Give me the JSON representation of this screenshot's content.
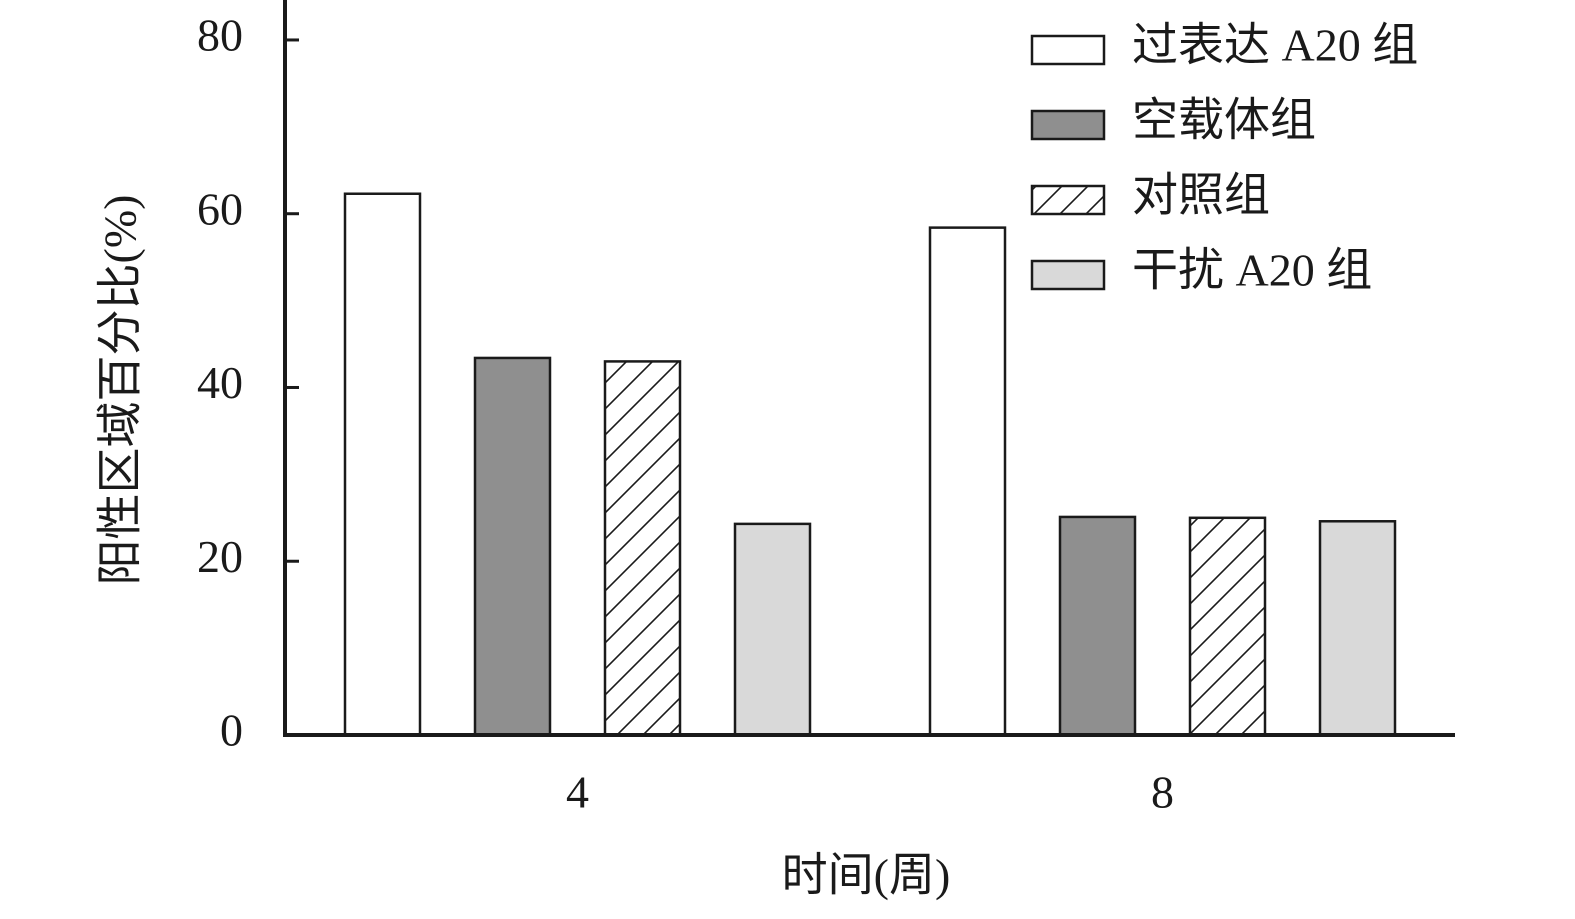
{
  "chart_data": {
    "type": "bar",
    "x_label": "时间(周)",
    "y_label": "阳性区域百分比(%)",
    "categories": [
      "4",
      "8"
    ],
    "series": [
      {
        "name": "过表达 A20 组",
        "color": "#ffffff",
        "values": [
          62.3,
          58.4
        ]
      },
      {
        "name": "空载体组",
        "color": "#8f8f8f",
        "values": [
          43.4,
          25.1
        ]
      },
      {
        "name": "对照组",
        "color": "#ffffff",
        "pattern": "hatch",
        "values": [
          43.0,
          25.0
        ]
      },
      {
        "name": "干扰 A20 组",
        "color": "#d9d9d9",
        "values": [
          24.3,
          24.6
        ]
      }
    ],
    "ylim": [
      0,
      84.6
    ],
    "yticks": [
      0,
      20,
      40,
      60,
      80
    ],
    "legend": "top-right"
  }
}
